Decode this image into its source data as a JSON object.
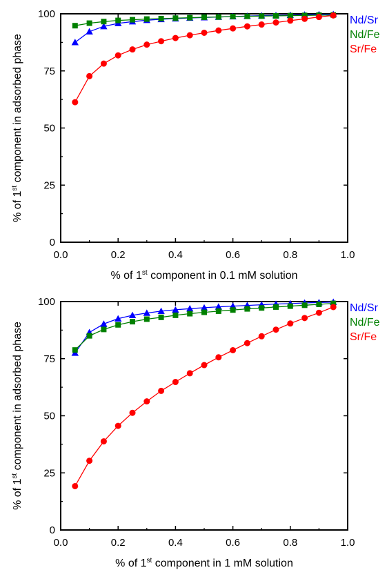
{
  "chart_data": [
    {
      "type": "line",
      "xlabel": {
        "prefix": "% of 1",
        "sup": "st",
        "suffix": " component in 0.1 mM solution"
      },
      "ylabel": {
        "prefix": "% of 1",
        "sup": "st",
        "suffix": " component in adsorbed phase"
      },
      "xlim": [
        0.0,
        1.0
      ],
      "ylim": [
        0,
        100
      ],
      "xticks": [
        "0.0",
        "0.2",
        "0.4",
        "0.6",
        "0.8",
        "1.0"
      ],
      "yticks": [
        "0",
        "25",
        "50",
        "75",
        "100"
      ],
      "grid": false,
      "legend_position": "top-right",
      "x": [
        0.05,
        0.1,
        0.15,
        0.2,
        0.25,
        0.3,
        0.35,
        0.4,
        0.45,
        0.5,
        0.55,
        0.6,
        0.65,
        0.7,
        0.75,
        0.8,
        0.85,
        0.9,
        0.95
      ],
      "series": [
        {
          "name": "Nd/Sr",
          "color": "#0000ff",
          "marker": "triangle",
          "values": [
            87.5,
            92.2,
            94.5,
            95.8,
            96.6,
            97.2,
            97.6,
            97.9,
            98.2,
            98.4,
            98.6,
            98.8,
            99.0,
            99.2,
            99.3,
            99.4,
            99.6,
            99.7,
            99.8
          ]
        },
        {
          "name": "Nd/Fe",
          "color": "#008000",
          "marker": "square",
          "values": [
            94.8,
            95.9,
            96.6,
            97.1,
            97.4,
            97.7,
            97.9,
            98.1,
            98.3,
            98.5,
            98.6,
            98.8,
            98.9,
            99.0,
            99.1,
            99.2,
            99.3,
            99.4,
            99.5
          ]
        },
        {
          "name": "Sr/Fe",
          "color": "#ff0000",
          "marker": "circle",
          "values": [
            61.3,
            72.7,
            78.2,
            81.8,
            84.4,
            86.5,
            88.0,
            89.4,
            90.6,
            91.7,
            92.7,
            93.6,
            94.5,
            95.3,
            96.2,
            97.0,
            97.8,
            98.6,
            99.3
          ]
        }
      ]
    },
    {
      "type": "line",
      "xlabel": {
        "prefix": "% of 1",
        "sup": "st",
        "suffix": " component in 1 mM solution"
      },
      "ylabel": {
        "prefix": "% of 1",
        "sup": "st",
        "suffix": " component in adsorbed phase"
      },
      "xlim": [
        0.0,
        1.0
      ],
      "ylim": [
        0,
        100
      ],
      "xticks": [
        "0.0",
        "0.2",
        "0.4",
        "0.6",
        "0.8",
        "1.0"
      ],
      "yticks": [
        "0",
        "25",
        "50",
        "75",
        "100"
      ],
      "grid": false,
      "legend_position": "top-right",
      "x": [
        0.05,
        0.1,
        0.15,
        0.2,
        0.25,
        0.3,
        0.35,
        0.4,
        0.45,
        0.5,
        0.55,
        0.6,
        0.65,
        0.7,
        0.75,
        0.8,
        0.85,
        0.9,
        0.95
      ],
      "series": [
        {
          "name": "Nd/Sr",
          "color": "#0000ff",
          "marker": "triangle",
          "values": [
            77.5,
            86.5,
            90.2,
            92.5,
            94.0,
            95.0,
            95.8,
            96.4,
            96.9,
            97.3,
            97.7,
            98.0,
            98.3,
            98.6,
            98.9,
            99.1,
            99.4,
            99.6,
            99.8
          ]
        },
        {
          "name": "Nd/Fe",
          "color": "#008000",
          "marker": "square",
          "values": [
            78.8,
            85.0,
            87.8,
            89.8,
            91.2,
            92.3,
            93.1,
            94.0,
            94.7,
            95.3,
            95.8,
            96.3,
            96.8,
            97.2,
            97.6,
            98.0,
            98.4,
            98.8,
            99.2
          ]
        },
        {
          "name": "Sr/Fe",
          "color": "#ff0000",
          "marker": "circle",
          "values": [
            19.2,
            30.3,
            38.8,
            45.6,
            51.3,
            56.3,
            60.9,
            64.8,
            68.6,
            72.2,
            75.6,
            78.7,
            81.8,
            84.8,
            87.7,
            90.4,
            92.8,
            95.1,
            97.6
          ]
        }
      ]
    }
  ]
}
